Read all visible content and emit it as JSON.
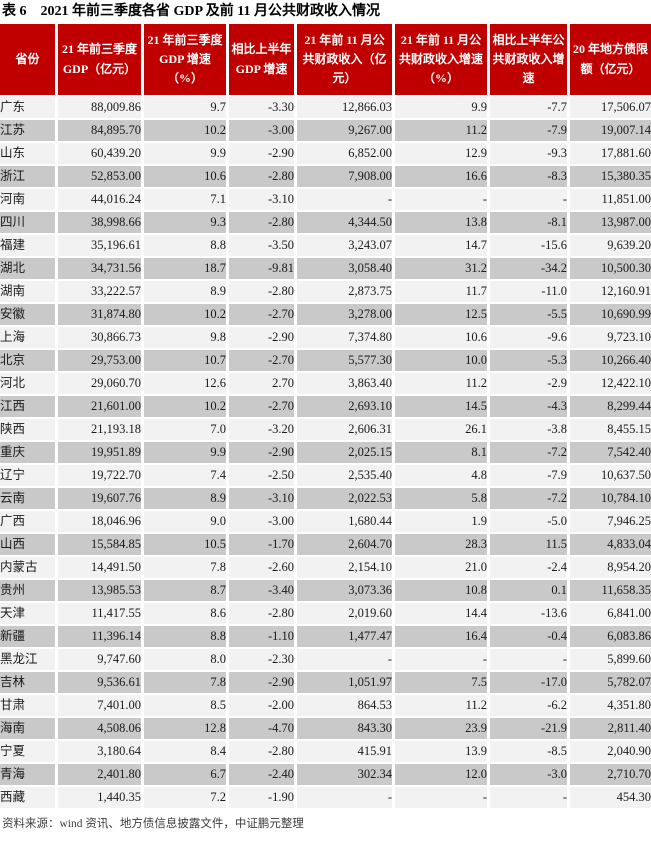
{
  "title": "表 6　2021 年前三季度各省 GDP 及前 11 月公共财政收入情况",
  "source_note": "资料来源：wind 资讯、地方债信息披露文件，中证鹏元整理",
  "colors": {
    "header_bg": "#C00000",
    "header_text": "#FFFFFF",
    "row_light": "#F2F2F2",
    "row_dark": "#C9C9C9",
    "title_text": "#000000",
    "note_text": "#3D3D3D"
  },
  "table": {
    "columns": [
      "省份",
      "21 年前三季度 GDP（亿元）",
      "21 年前三季度 GDP 增速（%）",
      "相比上半年 GDP 增速",
      "21 年前 11 月公共财政收入（亿元）",
      "21 年前 11 月公共财政收入增速（%）",
      "相比上半年公共财政收入增速",
      "20 年地方债限额（亿元）"
    ],
    "rows": [
      [
        "广东",
        "88,009.86",
        "9.7",
        "-3.30",
        "12,866.03",
        "9.9",
        "-7.7",
        "17,506.07"
      ],
      [
        "江苏",
        "84,895.70",
        "10.2",
        "-3.00",
        "9,267.00",
        "11.2",
        "-7.9",
        "19,007.14"
      ],
      [
        "山东",
        "60,439.20",
        "9.9",
        "-2.90",
        "6,852.00",
        "12.9",
        "-9.3",
        "17,881.60"
      ],
      [
        "浙江",
        "52,853.00",
        "10.6",
        "-2.80",
        "7,908.00",
        "16.6",
        "-8.3",
        "15,380.35"
      ],
      [
        "河南",
        "44,016.24",
        "7.1",
        "-3.10",
        "-",
        "-",
        "-",
        "11,851.00"
      ],
      [
        "四川",
        "38,998.66",
        "9.3",
        "-2.80",
        "4,344.50",
        "13.8",
        "-8.1",
        "13,987.00"
      ],
      [
        "福建",
        "35,196.61",
        "8.8",
        "-3.50",
        "3,243.07",
        "14.7",
        "-15.6",
        "9,639.20"
      ],
      [
        "湖北",
        "34,731.56",
        "18.7",
        "-9.81",
        "3,058.40",
        "31.2",
        "-34.2",
        "10,500.30"
      ],
      [
        "湖南",
        "33,222.57",
        "8.9",
        "-2.80",
        "2,873.75",
        "11.7",
        "-11.0",
        "12,160.91"
      ],
      [
        "安徽",
        "31,874.80",
        "10.2",
        "-2.70",
        "3,278.00",
        "12.5",
        "-5.5",
        "10,690.99"
      ],
      [
        "上海",
        "30,866.73",
        "9.8",
        "-2.90",
        "7,374.80",
        "10.6",
        "-9.6",
        "9,723.10"
      ],
      [
        "北京",
        "29,753.00",
        "10.7",
        "-2.70",
        "5,577.30",
        "10.0",
        "-5.3",
        "10,266.40"
      ],
      [
        "河北",
        "29,060.70",
        "12.6",
        "2.70",
        "3,863.40",
        "11.2",
        "-2.9",
        "12,422.10"
      ],
      [
        "江西",
        "21,601.00",
        "10.2",
        "-2.70",
        "2,693.10",
        "14.5",
        "-4.3",
        "8,299.44"
      ],
      [
        "陕西",
        "21,193.18",
        "7.0",
        "-3.20",
        "2,606.31",
        "26.1",
        "-3.8",
        "8,455.15"
      ],
      [
        "重庆",
        "19,951.89",
        "9.9",
        "-2.90",
        "2,025.15",
        "8.1",
        "-7.2",
        "7,542.40"
      ],
      [
        "辽宁",
        "19,722.70",
        "7.4",
        "-2.50",
        "2,535.40",
        "4.8",
        "-7.9",
        "10,637.50"
      ],
      [
        "云南",
        "19,607.76",
        "8.9",
        "-3.10",
        "2,022.53",
        "5.8",
        "-7.2",
        "10,784.10"
      ],
      [
        "广西",
        "18,046.96",
        "9.0",
        "-3.00",
        "1,680.44",
        "1.9",
        "-5.0",
        "7,946.25"
      ],
      [
        "山西",
        "15,584.85",
        "10.5",
        "-1.70",
        "2,604.70",
        "28.3",
        "11.5",
        "4,833.04"
      ],
      [
        "内蒙古",
        "14,491.50",
        "7.8",
        "-2.60",
        "2,154.10",
        "21.0",
        "-2.4",
        "8,954.20"
      ],
      [
        "贵州",
        "13,985.53",
        "8.7",
        "-3.40",
        "3,073.36",
        "10.8",
        "0.1",
        "11,658.35"
      ],
      [
        "天津",
        "11,417.55",
        "8.6",
        "-2.80",
        "2,019.60",
        "14.4",
        "-13.6",
        "6,841.00"
      ],
      [
        "新疆",
        "11,396.14",
        "8.8",
        "-1.10",
        "1,477.47",
        "16.4",
        "-0.4",
        "6,083.86"
      ],
      [
        "黑龙江",
        "9,747.60",
        "8.0",
        "-2.30",
        "-",
        "-",
        "-",
        "5,899.60"
      ],
      [
        "吉林",
        "9,536.61",
        "7.8",
        "-2.90",
        "1,051.97",
        "7.5",
        "-17.0",
        "5,782.07"
      ],
      [
        "甘肃",
        "7,401.00",
        "8.5",
        "-2.00",
        "864.53",
        "11.2",
        "-6.2",
        "4,351.80"
      ],
      [
        "海南",
        "4,508.06",
        "12.8",
        "-4.70",
        "843.30",
        "23.9",
        "-21.9",
        "2,811.40"
      ],
      [
        "宁夏",
        "3,180.64",
        "8.4",
        "-2.80",
        "415.91",
        "13.9",
        "-8.5",
        "2,040.90"
      ],
      [
        "青海",
        "2,401.80",
        "6.7",
        "-2.40",
        "302.34",
        "12.0",
        "-3.0",
        "2,710.70"
      ],
      [
        "西藏",
        "1,440.35",
        "7.2",
        "-1.90",
        "-",
        "-",
        "-",
        "454.30"
      ]
    ]
  }
}
